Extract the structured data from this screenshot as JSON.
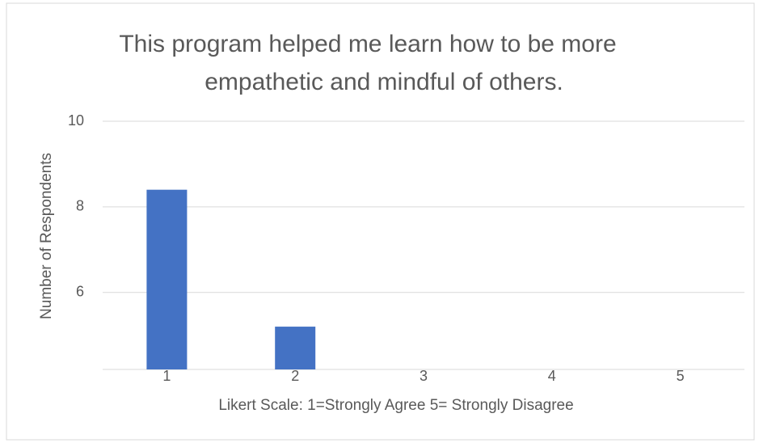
{
  "chart_data": {
    "type": "bar",
    "title": [
      "This program helped me learn how to be more",
      "empathetic and mindful of others."
    ],
    "x_label": "Likert Scale: 1=Strongly Agree 5= Strongly Disagree",
    "y_label": "Number of Respondents",
    "categories": [
      "1",
      "2",
      "3",
      "4",
      "5"
    ],
    "values": [
      8.4,
      5.2,
      null,
      null,
      null
    ],
    "color": "#4472c4",
    "ylim": [
      4.2,
      10
    ],
    "yticks": [
      6,
      8,
      10
    ],
    "grid": true
  }
}
